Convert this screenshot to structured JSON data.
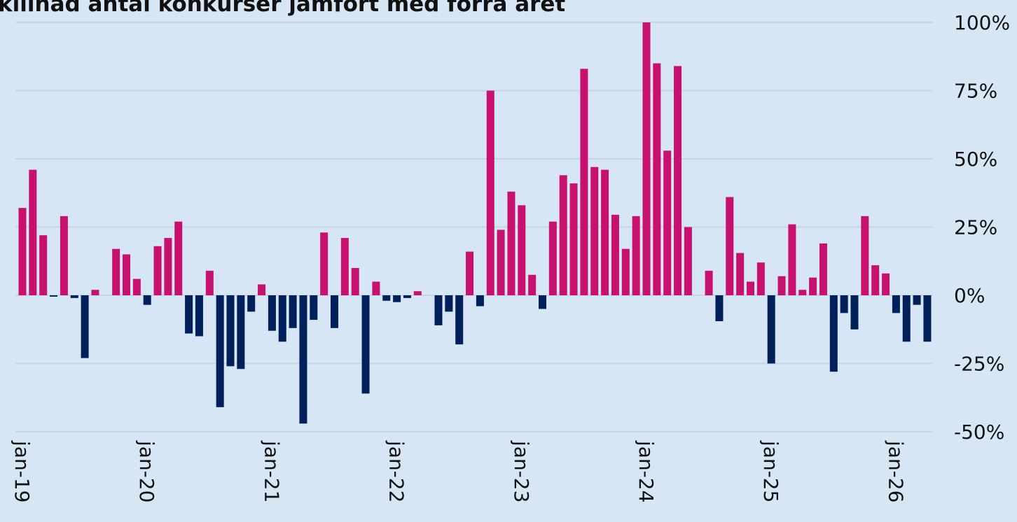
{
  "chart_data": {
    "type": "bar",
    "title": "killnad antal konkurser jämfört med förra året",
    "categories": [
      "jan-19",
      null,
      null,
      null,
      null,
      null,
      null,
      null,
      null,
      null,
      null,
      null,
      "jan-20",
      null,
      null,
      null,
      null,
      null,
      null,
      null,
      null,
      null,
      null,
      null,
      "jan-21",
      null,
      null,
      null,
      null,
      null,
      null,
      null,
      null,
      null,
      null,
      null,
      "jan-22",
      null,
      null,
      null,
      null,
      null,
      null,
      null,
      null,
      null,
      null,
      null,
      "jan-23",
      null,
      null,
      null,
      null,
      null,
      null,
      null,
      null,
      null,
      null,
      null,
      "jan-24",
      null,
      null,
      null,
      null,
      null,
      null,
      null,
      null,
      null,
      null,
      null,
      "jan-25",
      null,
      null,
      null,
      null,
      null,
      null,
      null,
      null,
      null,
      null,
      null,
      "jan-26",
      null,
      null,
      null
    ],
    "values": [
      32,
      46,
      22,
      -0.5,
      29,
      -1,
      -23,
      2,
      0,
      17,
      15,
      6,
      -3.5,
      18,
      21,
      27,
      -14,
      -15,
      9,
      -41,
      -26,
      -27,
      -6,
      4,
      -13,
      -17,
      -12,
      -47,
      -9,
      23,
      -12,
      21,
      10,
      -36,
      5,
      -2,
      -2.5,
      -1,
      1.5,
      0,
      -11,
      -6,
      -18,
      16,
      -4,
      75,
      24,
      38,
      33,
      7.5,
      -5,
      27,
      44,
      41,
      83,
      47,
      46,
      29.5,
      17,
      29,
      100,
      85,
      53,
      84,
      25,
      0,
      9,
      -9.5,
      36,
      15.5,
      5,
      12,
      -25,
      7,
      26,
      2,
      6.5,
      19,
      -28,
      -6.5,
      -12.5,
      29,
      11,
      8,
      -6.5,
      -17,
      -3.5,
      -17
    ],
    "positive_color": "#c8106e",
    "negative_color": "#00205b",
    "ylim": [
      -50,
      100
    ],
    "yticks": [
      {
        "value": -50,
        "label": "-50%"
      },
      {
        "value": -25,
        "label": "-25%"
      },
      {
        "value": 0,
        "label": "0%"
      },
      {
        "value": 25,
        "label": "25%"
      },
      {
        "value": 50,
        "label": "50%"
      },
      {
        "value": 75,
        "label": "75%"
      },
      {
        "value": 100,
        "label": "100%"
      }
    ],
    "grid": true
  }
}
